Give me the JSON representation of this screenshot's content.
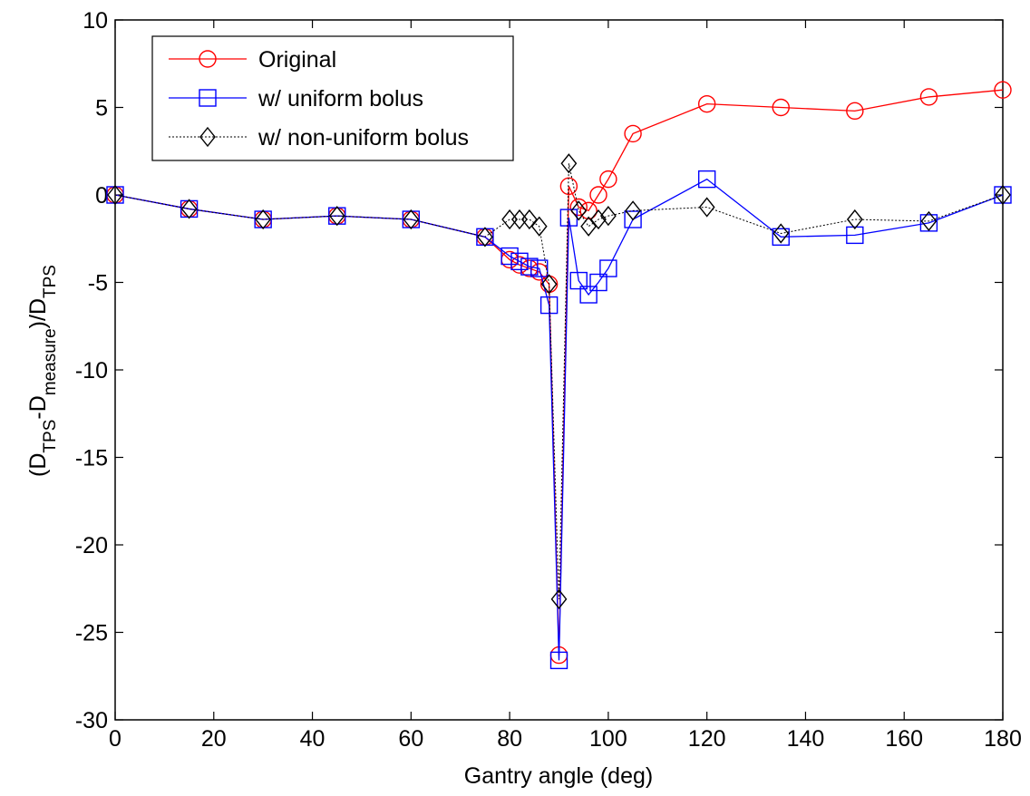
{
  "chart_data": {
    "type": "line",
    "title": "",
    "xlabel": "Gantry angle (deg)",
    "ylabel": {
      "parts": [
        {
          "t": "(D",
          "s": "base"
        },
        {
          "t": "TPS",
          "s": "sub"
        },
        {
          "t": "-D",
          "s": "base"
        },
        {
          "t": "measure",
          "s": "sub"
        },
        {
          "t": ")/D",
          "s": "base"
        },
        {
          "t": "TPS",
          "s": "sub"
        }
      ]
    },
    "xlim": [
      0,
      180
    ],
    "ylim": [
      -30,
      10
    ],
    "xticks": [
      0,
      20,
      40,
      60,
      80,
      100,
      120,
      140,
      160,
      180
    ],
    "xtick_labels": [
      "0",
      "20",
      "40",
      "60",
      "80",
      "100",
      "120",
      "140",
      "160",
      "180"
    ],
    "yticks": [
      10,
      5,
      0,
      -5,
      -10,
      -15,
      -20,
      -25,
      -30
    ],
    "ytick_labels": [
      "10",
      "5",
      "0",
      "-5",
      "-10",
      "-15",
      "-20",
      "-25",
      "-30"
    ],
    "grid": false,
    "legend_position": "top-left",
    "series": [
      {
        "name": "Original",
        "color": "#ff0000",
        "marker": "circle",
        "line_style": "solid",
        "x": [
          0,
          15,
          30,
          45,
          60,
          75,
          80,
          82,
          84,
          86,
          88,
          90,
          92,
          94,
          96,
          98,
          100,
          105,
          120,
          135,
          150,
          165,
          180
        ],
        "y": [
          0,
          -0.8,
          -1.4,
          -1.2,
          -1.4,
          -2.4,
          -3.7,
          -4.0,
          -4.2,
          -4.4,
          -5.1,
          -26.3,
          0.5,
          -0.7,
          -0.9,
          0.0,
          0.9,
          3.5,
          5.2,
          5.0,
          4.8,
          5.6,
          6.0
        ]
      },
      {
        "name": "w/ uniform bolus",
        "color": "#0000ff",
        "marker": "square",
        "line_style": "solid",
        "x": [
          0,
          15,
          30,
          45,
          60,
          75,
          80,
          82,
          84,
          86,
          88,
          90,
          92,
          94,
          96,
          98,
          100,
          105,
          120,
          135,
          150,
          165,
          180
        ],
        "y": [
          0,
          -0.8,
          -1.4,
          -1.2,
          -1.4,
          -2.4,
          -3.5,
          -3.8,
          -4.1,
          -4.2,
          -6.3,
          -26.6,
          -1.3,
          -4.9,
          -5.7,
          -5.0,
          -4.2,
          -1.4,
          0.9,
          -2.4,
          -2.3,
          -1.6,
          0.0
        ]
      },
      {
        "name": "w/ non-uniform bolus",
        "color": "#000000",
        "marker": "diamond",
        "line_style": "dotted",
        "x": [
          0,
          15,
          30,
          45,
          60,
          75,
          80,
          82,
          84,
          86,
          88,
          90,
          92,
          94,
          96,
          98,
          100,
          105,
          120,
          135,
          150,
          165,
          180
        ],
        "y": [
          0,
          -0.8,
          -1.4,
          -1.2,
          -1.4,
          -2.4,
          -1.4,
          -1.4,
          -1.4,
          -1.8,
          -5.1,
          -23.1,
          1.8,
          -0.9,
          -1.8,
          -1.4,
          -1.2,
          -0.9,
          -0.7,
          -2.2,
          -1.4,
          -1.5,
          0.0
        ]
      }
    ]
  }
}
